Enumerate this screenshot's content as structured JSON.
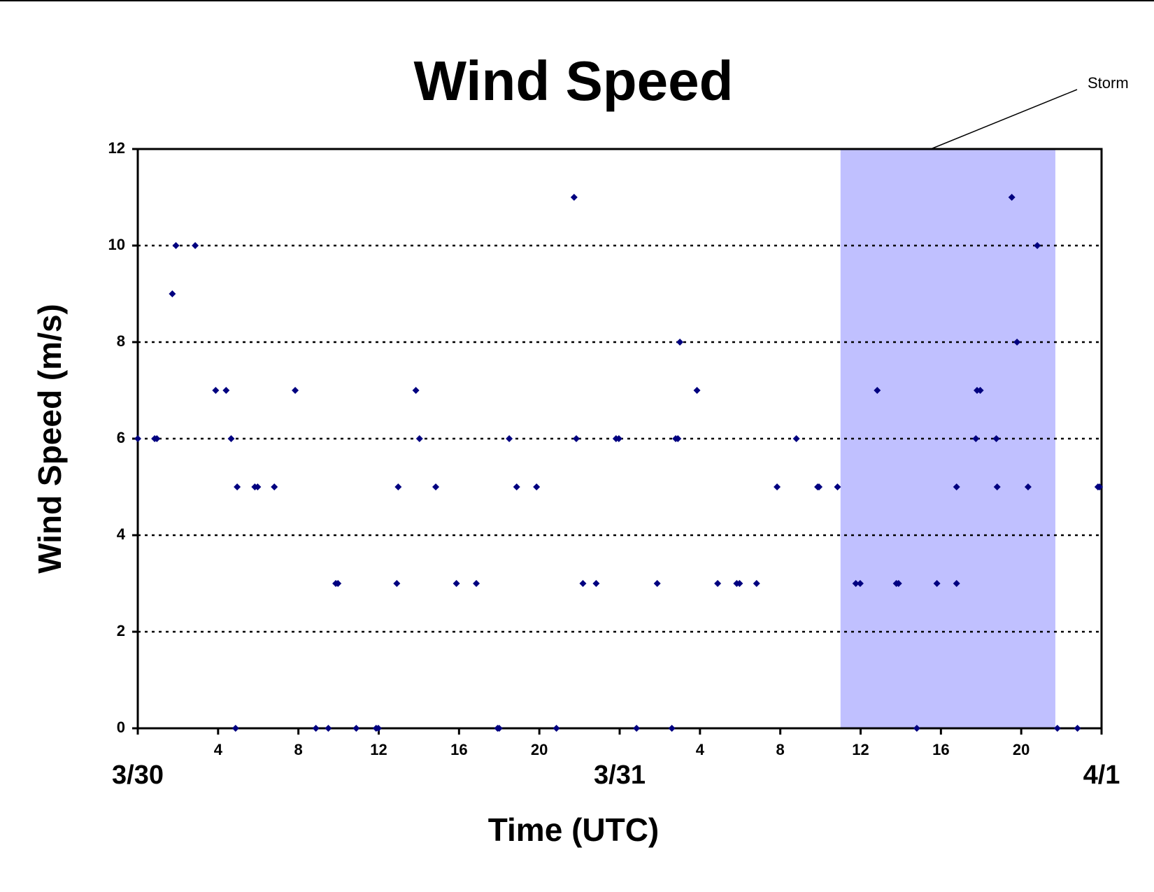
{
  "chart_data": {
    "type": "scatter",
    "title": "Wind Speed",
    "x_label": "Time (UTC)",
    "y_label": "Wind Speed (m/s)",
    "x": [
      0,
      0.84,
      0.95,
      1.72,
      1.9,
      2.86,
      3.88,
      4.4,
      4.65,
      4.87,
      4.95,
      5.83,
      5.97,
      6.8,
      7.84,
      8.87,
      9.49,
      9.86,
      9.97,
      10.88,
      11.87,
      11.98,
      12.9,
      12.97,
      13.85,
      14.03,
      14.84,
      15.87,
      16.86,
      17.92,
      18.0,
      18.5,
      18.87,
      19.86,
      20.85,
      21.73,
      21.84,
      22.17,
      22.83,
      23.82,
      23.96,
      24.84,
      25.87,
      26.6,
      26.79,
      26.9,
      27.0,
      27.85,
      28.88,
      29.83,
      29.97,
      30.82,
      31.84,
      32.8,
      33.86,
      33.93,
      34.85,
      35.76,
      35.98,
      36.83,
      37.78,
      37.89,
      38.8,
      39.8,
      40.78,
      40.78,
      41.74,
      41.8,
      41.96,
      42.76,
      42.8,
      43.53,
      43.79,
      44.34,
      44.8,
      45.8,
      46.8,
      47.82,
      47.9
    ],
    "series": [
      {
        "name": "Wind Speed",
        "color": "#000080",
        "values": [
          6,
          6,
          6,
          9,
          10,
          10,
          7,
          7,
          6,
          0,
          5,
          5,
          5,
          5,
          7,
          0,
          0,
          3,
          3,
          0,
          0,
          0,
          3,
          5,
          7,
          6,
          5,
          3,
          3,
          0,
          0,
          6,
          5,
          5,
          0,
          11,
          6,
          3,
          3,
          6,
          6,
          0,
          3,
          0,
          6,
          6,
          8,
          7,
          3,
          3,
          3,
          3,
          5,
          6,
          5,
          5,
          5,
          3,
          3,
          7,
          3,
          3,
          0,
          3,
          5,
          3,
          6,
          7,
          7,
          6,
          5,
          11,
          8,
          5,
          10,
          0,
          0,
          5,
          5
        ]
      }
    ],
    "xlim": [
      0,
      48
    ],
    "xticks": [
      {
        "value": 0,
        "label": "3/30"
      },
      4,
      8,
      12,
      16,
      20,
      {
        "value": 24,
        "label": "3/31"
      },
      4,
      8,
      12,
      16,
      20,
      {
        "value": 48,
        "label": "4/1"
      }
    ],
    "ylim": [
      0,
      12
    ],
    "yticks": [
      0,
      2,
      4,
      6,
      8,
      10,
      12
    ],
    "grid": true,
    "shaded_regions": [
      {
        "label": "Storm",
        "xlim": [
          35,
          45.7
        ],
        "color": "#c0c0ff"
      }
    ]
  }
}
